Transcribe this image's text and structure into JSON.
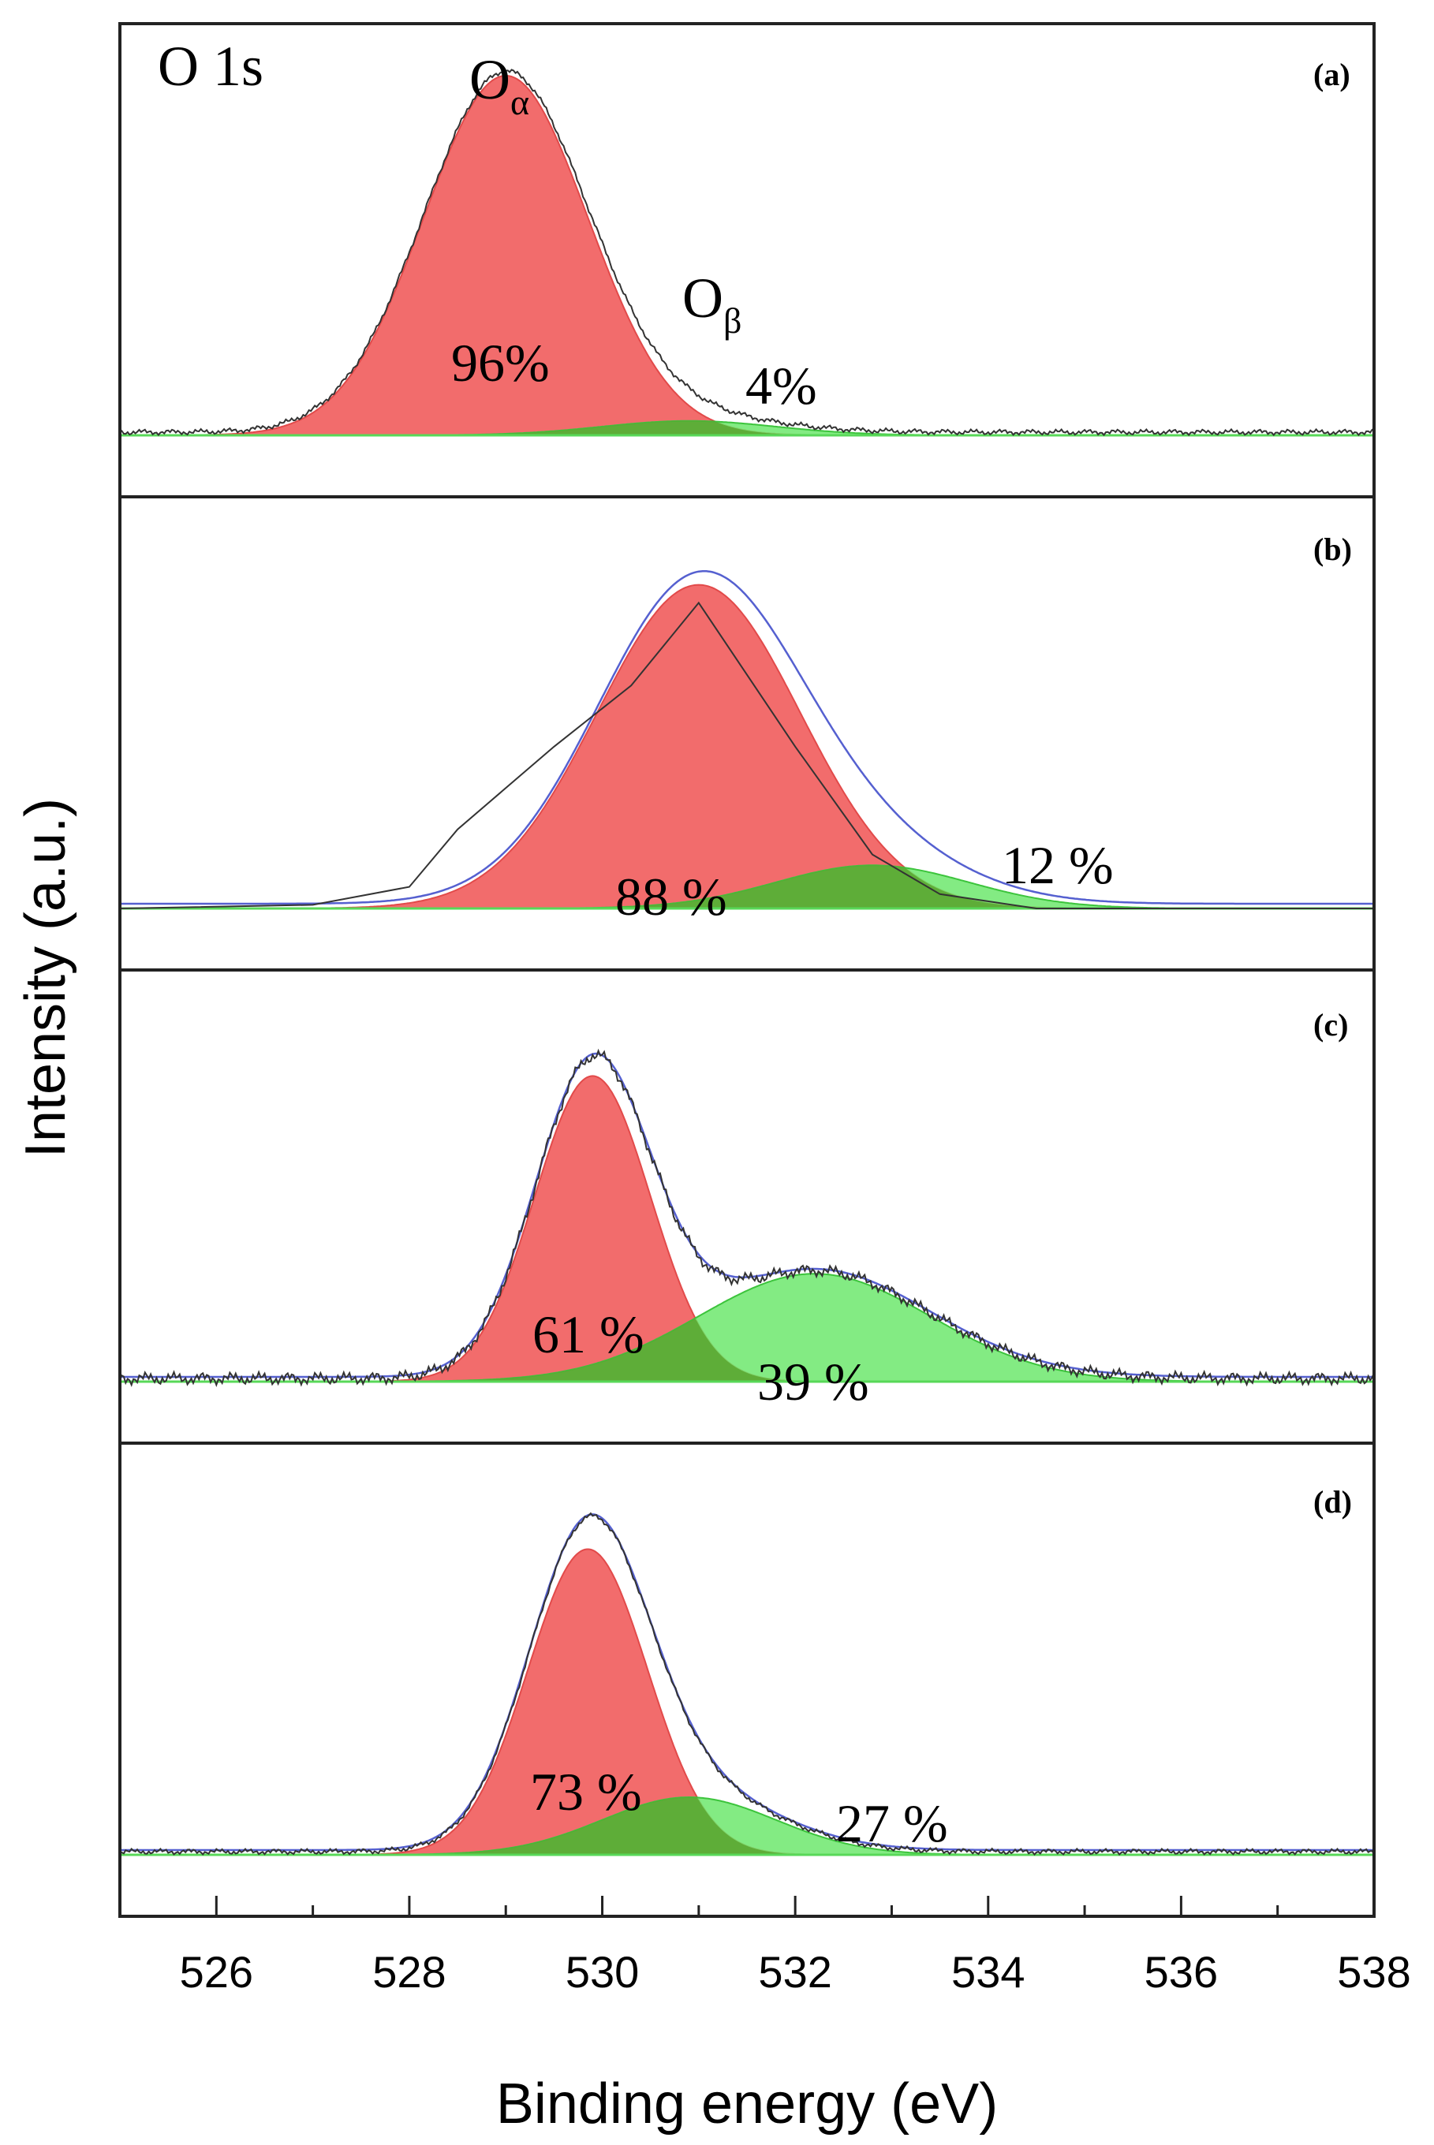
{
  "chart_data": {
    "type": "line",
    "element": "O 1s",
    "xlabel": "Binding energy (eV)",
    "ylabel": "Intensity (a.u.)",
    "xlim": [
      525,
      538
    ],
    "xticks": [
      526,
      528,
      530,
      532,
      534,
      536,
      538
    ],
    "panels": [
      {
        "label": "(a)",
        "baseline": 0.1,
        "peaks": [
          {
            "name": "Oα",
            "center": 529.0,
            "sigma": 0.85,
            "height": 1.0,
            "percent": "96%",
            "color": "#f26c6c"
          },
          {
            "name": "Oβ",
            "center": 530.9,
            "sigma": 0.9,
            "height": 0.04,
            "percent": "4%",
            "color": "#6de86d"
          }
        ]
      },
      {
        "label": "(b)",
        "baseline": 0.03,
        "peaks": [
          {
            "center": 531.0,
            "sigma": 1.05,
            "height": 0.9,
            "percent": "88 %",
            "color": "#f26c6c"
          },
          {
            "center": 532.8,
            "sigma": 1.0,
            "height": 0.12,
            "percent": "12 %",
            "color": "#6de86d"
          }
        ]
      },
      {
        "label": "(c)",
        "baseline": 0.04,
        "peaks": [
          {
            "center": 529.9,
            "sigma": 0.6,
            "height": 0.85,
            "percent": "61 %",
            "color": "#f26c6c"
          },
          {
            "center": 532.2,
            "sigma": 1.2,
            "height": 0.3,
            "percent": "39 %",
            "color": "#6de86d"
          }
        ]
      },
      {
        "label": "(d)",
        "baseline": 0.05,
        "peaks": [
          {
            "center": 529.85,
            "sigma": 0.62,
            "height": 0.85,
            "percent": "73 %",
            "color": "#f26c6c"
          },
          {
            "center": 530.9,
            "sigma": 0.9,
            "height": 0.16,
            "percent": "27 %",
            "color": "#6de86d"
          }
        ]
      }
    ]
  }
}
